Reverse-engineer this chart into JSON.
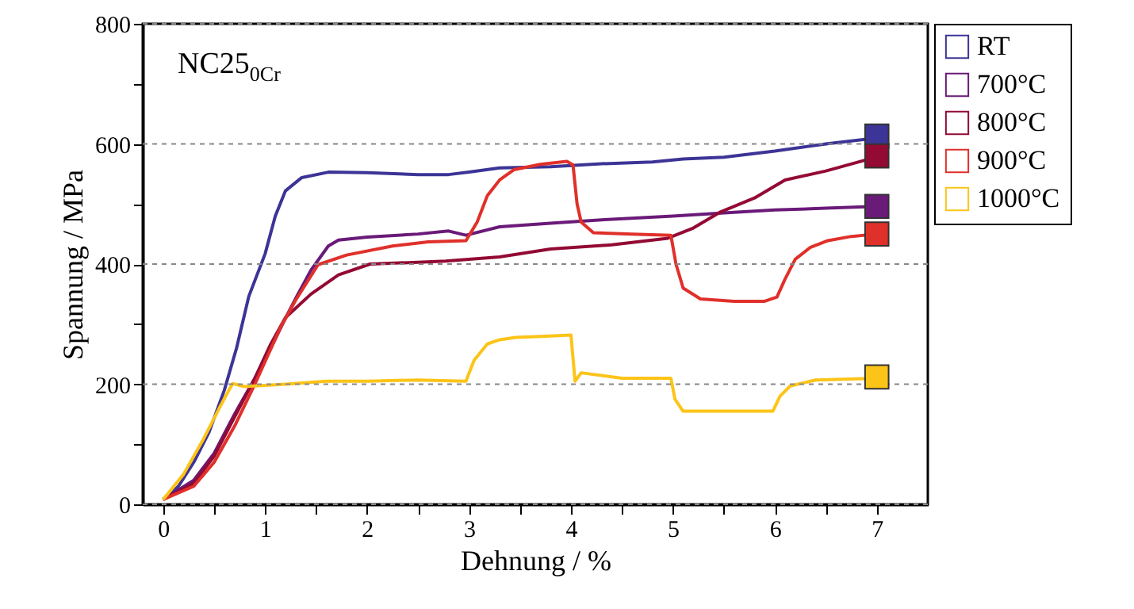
{
  "chart_data": {
    "type": "line",
    "xlabel": "Dehnung / %",
    "ylabel": "Spannung / MPa",
    "annotations": [
      "NC25$_{0Cr}$"
    ],
    "xlim": [
      -0.2,
      7.5
    ],
    "xticks": [
      0,
      {
        "value": 0.5,
        "label": null
      },
      1,
      {
        "value": 1.5,
        "label": null
      },
      2,
      {
        "value": 2.5,
        "label": null
      },
      3,
      {
        "value": 3.5,
        "label": null
      },
      4,
      {
        "value": 4.5,
        "label": null
      },
      5,
      {
        "value": 5.5,
        "label": null
      },
      6,
      {
        "value": 6.5,
        "label": null
      },
      7
    ],
    "ylim": [
      0,
      800
    ],
    "yticks": [
      0,
      {
        "value": 100,
        "label": null
      },
      200,
      {
        "value": 300,
        "label": null
      },
      400,
      {
        "value": 500,
        "label": null
      },
      600,
      {
        "value": 700,
        "label": null
      },
      800
    ],
    "grid": "y",
    "legend": "right",
    "series": [
      {
        "name": "RT",
        "color": "#3c3496",
        "x": [
          0,
          0.15,
          0.3,
          0.45,
          0.6,
          0.72,
          0.84,
          1.0,
          1.1,
          1.2,
          1.36,
          1.62,
          2.0,
          2.5,
          2.8,
          3.0,
          3.3,
          3.8,
          4.3,
          4.8,
          5.1,
          5.5,
          6.0,
          6.5,
          7.0
        ],
        "values": [
          8,
          30,
          70,
          120,
          190,
          260,
          346,
          417,
          480,
          522,
          544,
          553,
          552,
          549,
          549,
          553,
          560,
          562,
          567,
          570,
          575,
          578,
          588,
          600,
          610
        ]
      },
      {
        "name": "700°C",
        "color": "#6a1a78",
        "x": [
          0,
          0.3,
          0.5,
          0.7,
          0.9,
          1.05,
          1.2,
          1.31,
          1.45,
          1.62,
          1.72,
          2.0,
          2.5,
          2.8,
          2.97,
          3.3,
          3.8,
          4.33,
          5.0,
          5.5,
          6.0,
          6.5,
          7.0
        ],
        "values": [
          8,
          40,
          85,
          150,
          210,
          258,
          310,
          346,
          390,
          430,
          440,
          445,
          450,
          455,
          448,
          462,
          468,
          474,
          480,
          485,
          490,
          493,
          496
        ]
      },
      {
        "name": "800°C",
        "color": "#930a34",
        "x": [
          0,
          0.3,
          0.5,
          0.7,
          0.9,
          1.05,
          1.2,
          1.45,
          1.72,
          2.03,
          2.5,
          2.77,
          3.3,
          3.8,
          4.4,
          4.95,
          5.2,
          5.47,
          5.8,
          6.1,
          6.5,
          6.93,
          7.0
        ],
        "values": [
          8,
          35,
          80,
          145,
          210,
          265,
          311,
          350,
          382,
          400,
          403,
          405,
          412,
          425,
          432,
          443,
          460,
          487,
          510,
          540,
          555,
          575,
          580
        ]
      },
      {
        "name": "900°C",
        "color": "#e0302a",
        "x": [
          0,
          0.3,
          0.5,
          0.7,
          0.9,
          1.15,
          1.3,
          1.52,
          1.8,
          2.25,
          2.6,
          2.97,
          3.08,
          3.18,
          3.3,
          3.44,
          3.7,
          3.96,
          4.02,
          4.06,
          4.1,
          4.22,
          4.6,
          4.98,
          5.03,
          5.1,
          5.27,
          5.6,
          5.9,
          6.02,
          6.1,
          6.2,
          6.35,
          6.52,
          6.75,
          7.0
        ],
        "values": [
          8,
          30,
          70,
          130,
          200,
          294,
          340,
          399,
          415,
          430,
          437,
          439,
          470,
          514,
          540,
          557,
          566,
          571,
          565,
          500,
          470,
          452,
          450,
          448,
          400,
          360,
          342,
          338,
          338,
          345,
          375,
          408,
          428,
          439,
          446,
          450
        ]
      },
      {
        "name": "1000°C",
        "color": "#fcc418",
        "x": [
          0,
          0.2,
          0.4,
          0.55,
          0.68,
          0.8,
          1.2,
          1.6,
          2.0,
          2.5,
          2.97,
          3.05,
          3.18,
          3.3,
          3.46,
          3.75,
          4.0,
          4.04,
          4.1,
          4.5,
          4.98,
          5.02,
          5.1,
          5.5,
          5.98,
          6.05,
          6.15,
          6.4,
          7.0
        ],
        "values": [
          8,
          50,
          110,
          160,
          201,
          196,
          200,
          205,
          205,
          207,
          205,
          240,
          267,
          274,
          278,
          280,
          282,
          205,
          219,
          210,
          210,
          175,
          155,
          155,
          155,
          180,
          197,
          207,
          210
        ]
      },
      {
        "type": "scatter",
        "marker": "square",
        "color": "#3c3496",
        "x": [
          7.0
        ],
        "values": [
          613
        ]
      },
      {
        "type": "scatter",
        "marker": "square",
        "color": "#6a1a78",
        "x": [
          7.0
        ],
        "values": [
          496
        ]
      },
      {
        "type": "scatter",
        "marker": "square",
        "color": "#930a34",
        "x": [
          7.0
        ],
        "values": [
          580
        ]
      },
      {
        "type": "scatter",
        "marker": "square",
        "color": "#e0302a",
        "x": [
          7.0
        ],
        "values": [
          450
        ]
      },
      {
        "type": "scatter",
        "marker": "square",
        "color": "#fcc418",
        "x": [
          7.0
        ],
        "values": [
          212
        ]
      }
    ]
  }
}
